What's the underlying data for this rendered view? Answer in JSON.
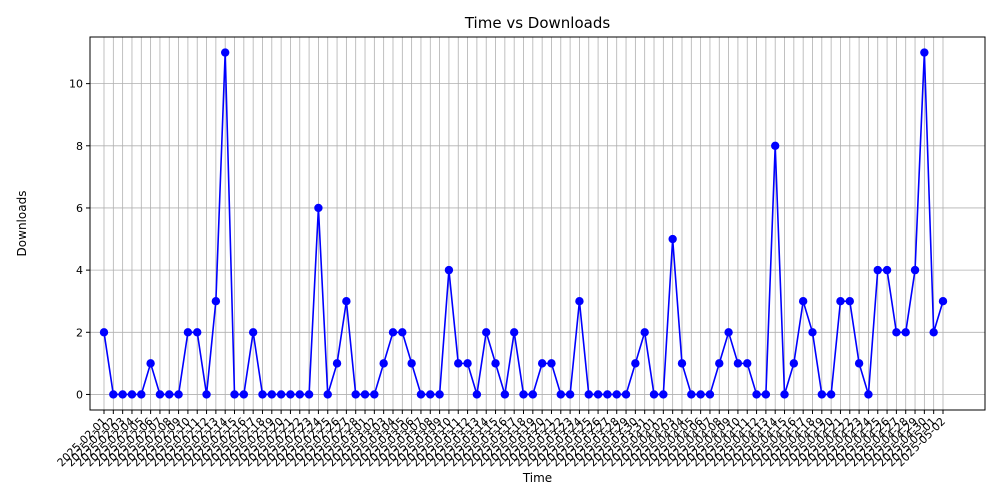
{
  "chart_data": {
    "type": "line",
    "title": "Time vs Downloads",
    "xlabel": "Time",
    "ylabel": "Downloads",
    "ylim": [
      -0.5,
      11.5
    ],
    "yticks": [
      0,
      2,
      4,
      6,
      8,
      10
    ],
    "grid": true,
    "color": "#0000ff",
    "marker": "circle",
    "x": [
      "2025-02-01",
      "2025-02-02",
      "2025-02-03",
      "2025-02-04",
      "2025-02-05",
      "2025-02-06",
      "2025-02-07",
      "2025-02-08",
      "2025-02-09",
      "2025-02-10",
      "2025-02-11",
      "2025-02-12",
      "2025-02-13",
      "2025-02-14",
      "2025-02-15",
      "2025-02-16",
      "2025-02-17",
      "2025-02-18",
      "2025-02-19",
      "2025-02-20",
      "2025-02-21",
      "2025-02-22",
      "2025-02-23",
      "2025-02-24",
      "2025-02-25",
      "2025-02-26",
      "2025-02-27",
      "2025-02-28",
      "2025-03-01",
      "2025-03-02",
      "2025-03-03",
      "2025-03-04",
      "2025-03-05",
      "2025-03-06",
      "2025-03-07",
      "2025-03-08",
      "2025-03-09",
      "2025-03-10",
      "2025-03-11",
      "2025-03-12",
      "2025-03-13",
      "2025-03-14",
      "2025-03-15",
      "2025-03-16",
      "2025-03-17",
      "2025-03-18",
      "2025-03-19",
      "2025-03-20",
      "2025-03-21",
      "2025-03-22",
      "2025-03-23",
      "2025-03-24",
      "2025-03-25",
      "2025-03-26",
      "2025-03-27",
      "2025-03-28",
      "2025-03-29",
      "2025-03-30",
      "2025-03-31",
      "2025-04-01",
      "2025-04-02",
      "2025-04-03",
      "2025-04-04",
      "2025-04-05",
      "2025-04-06",
      "2025-04-07",
      "2025-04-08",
      "2025-04-09",
      "2025-04-10",
      "2025-04-11",
      "2025-04-12",
      "2025-04-13",
      "2025-04-14",
      "2025-04-15",
      "2025-04-16",
      "2025-04-17",
      "2025-04-18",
      "2025-04-19",
      "2025-04-20",
      "2025-04-21",
      "2025-04-22",
      "2025-04-23",
      "2025-04-24",
      "2025-04-25",
      "2025-04-26",
      "2025-04-27",
      "2025-04-28",
      "2025-04-29",
      "2025-04-30",
      "2025-05-01",
      "2025-05-02"
    ],
    "values": [
      2,
      0,
      0,
      0,
      0,
      1,
      0,
      0,
      0,
      2,
      2,
      0,
      3,
      11,
      0,
      0,
      2,
      0,
      0,
      0,
      0,
      0,
      0,
      6,
      0,
      1,
      3,
      0,
      0,
      0,
      1,
      2,
      2,
      1,
      0,
      0,
      0,
      4,
      1,
      1,
      0,
      2,
      1,
      0,
      2,
      0,
      0,
      1,
      1,
      0,
      0,
      3,
      0,
      0,
      0,
      0,
      0,
      1,
      2,
      0,
      0,
      5,
      1,
      0,
      0,
      0,
      1,
      2,
      1,
      1,
      0,
      0,
      8,
      0,
      1,
      3,
      2,
      0,
      0,
      3,
      3,
      1,
      0,
      4,
      4,
      2,
      2,
      4,
      11,
      2,
      3
    ]
  }
}
